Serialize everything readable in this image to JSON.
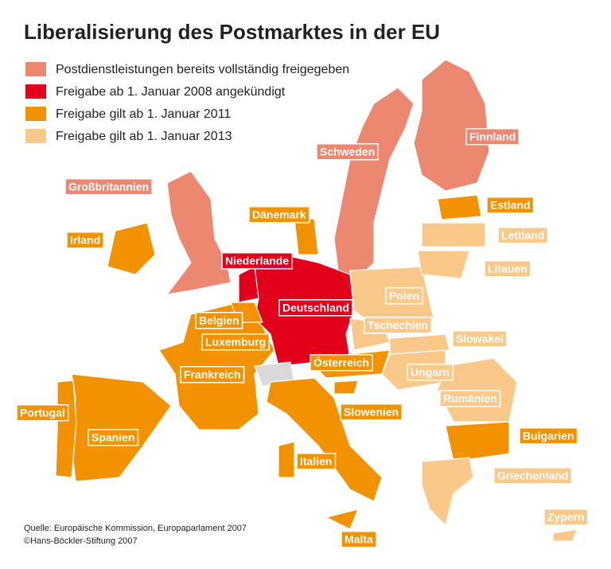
{
  "title": "Liberalisierung des Postmarktes in der EU",
  "legend": [
    {
      "label": "Postdienstleistungen bereits vollständig freigegeben",
      "color": "#ec8770",
      "countries": [
        "Großbritannien",
        "Schweden",
        "Finnland"
      ]
    },
    {
      "label": "Freigabe ab 1. Januar 2008 angekündigt",
      "color": "#e2001a",
      "countries": [
        "Niederlande",
        "Deutschland"
      ]
    },
    {
      "label": "Freigabe gilt ab 1. Januar 2011",
      "color": "#f39200",
      "countries": [
        "Irland",
        "Dänemark",
        "Estland",
        "Belgien",
        "Luxemburg",
        "Frankreich",
        "Portugal",
        "Spanien",
        "Italien",
        "Slowenien",
        "Österreich",
        "Bulgarien",
        "Malta"
      ]
    },
    {
      "label": "Freigabe gilt ab 1. Januar 2013",
      "color": "#fac98a",
      "countries": [
        "Lettland",
        "Litauen",
        "Polen",
        "Tschechien",
        "Slowakei",
        "Ungarn",
        "Rumänien",
        "Griechenland",
        "Zypern"
      ]
    }
  ],
  "source": [
    "Quelle: Europäische Kommission, Europaparlament 2007",
    "©Hans-Böckler-Stiftung 2007"
  ]
}
